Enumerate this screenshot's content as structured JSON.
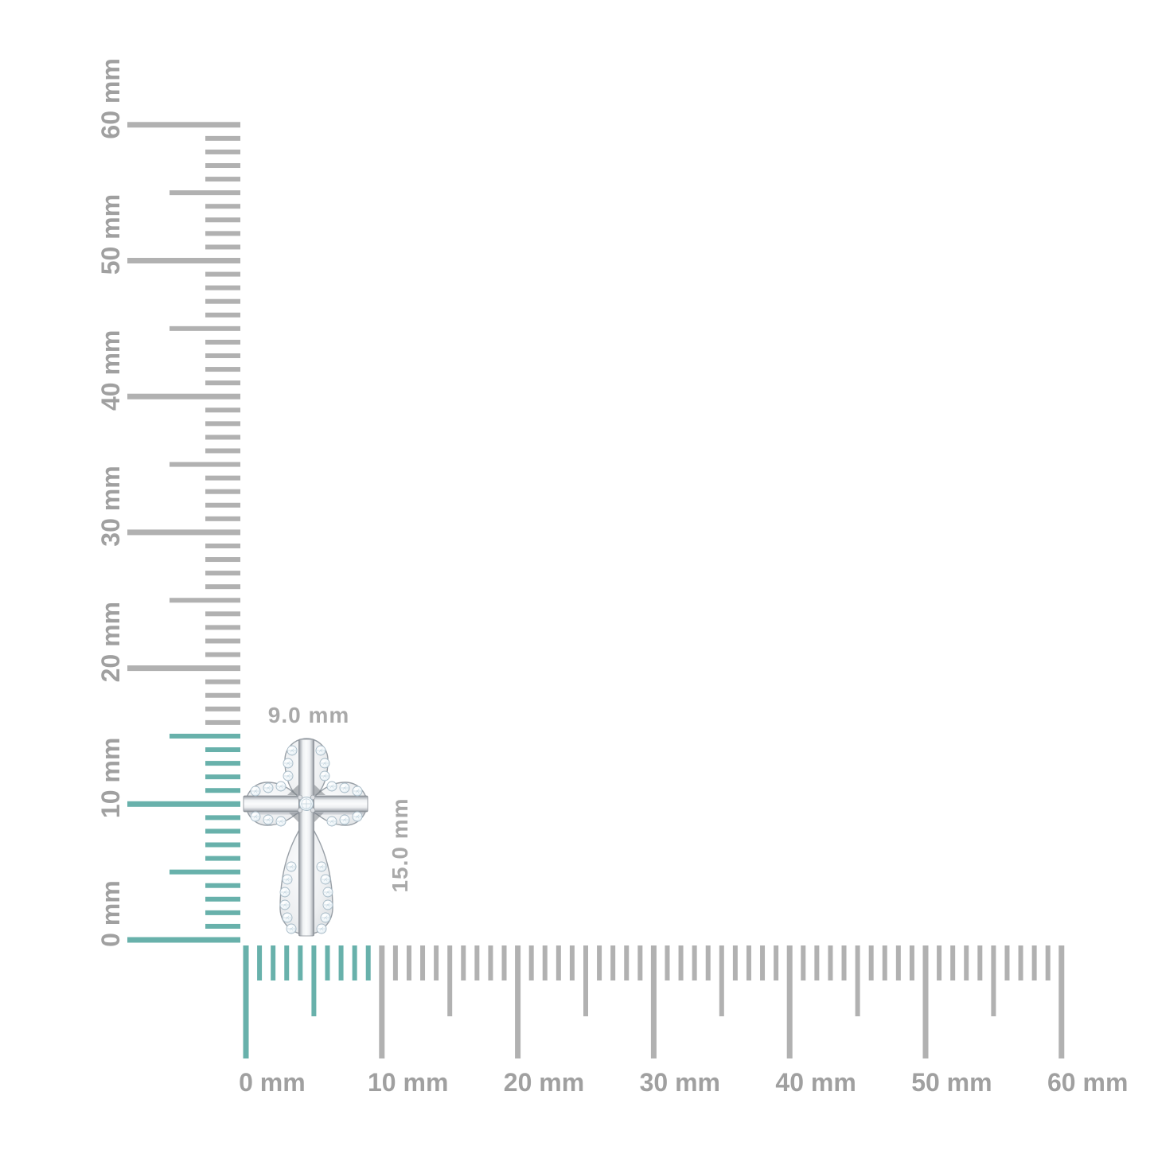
{
  "figure": {
    "description": "Size guide diagram of a pave diamond cross pendant shown against millimeter rulers",
    "background_color": "#FFFFFF"
  },
  "pendant": {
    "name": "diamond cross pendant",
    "style": "four teardrop petal arms with pave set round diamonds, polished white metal cross bars, single round center diamond",
    "width_mm": 9.0,
    "height_mm": 15.0
  },
  "dimensions": {
    "width_label": "9.0 mm",
    "height_label": "15.0 mm"
  },
  "rulers": {
    "unit": "mm",
    "vertical": {
      "min_mm": 0,
      "max_mm": 60,
      "minor_step_mm": 1,
      "half_step_mm": 5,
      "major_step_mm": 10,
      "highlight_extent_mm": 15,
      "labels": [
        {
          "mm": 0,
          "text": "0 mm"
        },
        {
          "mm": 10,
          "text": "10 mm"
        },
        {
          "mm": 20,
          "text": "20 mm"
        },
        {
          "mm": 30,
          "text": "30 mm"
        },
        {
          "mm": 40,
          "text": "40 mm"
        },
        {
          "mm": 50,
          "text": "50 mm"
        },
        {
          "mm": 60,
          "text": "60 mm"
        }
      ]
    },
    "horizontal": {
      "min_mm": 0,
      "max_mm": 60,
      "minor_step_mm": 1,
      "half_step_mm": 5,
      "major_step_mm": 10,
      "highlight_extent_mm": 9,
      "labels": [
        {
          "mm": 0,
          "text": "0 mm"
        },
        {
          "mm": 10,
          "text": "10 mm"
        },
        {
          "mm": 20,
          "text": "20 mm"
        },
        {
          "mm": 30,
          "text": "30 mm"
        },
        {
          "mm": 40,
          "text": "40 mm"
        },
        {
          "mm": 50,
          "text": "50 mm"
        },
        {
          "mm": 60,
          "text": "60 mm"
        }
      ]
    }
  },
  "colors": {
    "highlight_teal": "#68B1AB",
    "tick_gray": "#B1B1B1",
    "label_gray": "#A0A0A0",
    "dimension_label_gray": "#A9A9A9",
    "metal_light": "#F5F6F7",
    "metal_dark": "#8A9096",
    "diamond_edge": "#C5D5DE"
  }
}
